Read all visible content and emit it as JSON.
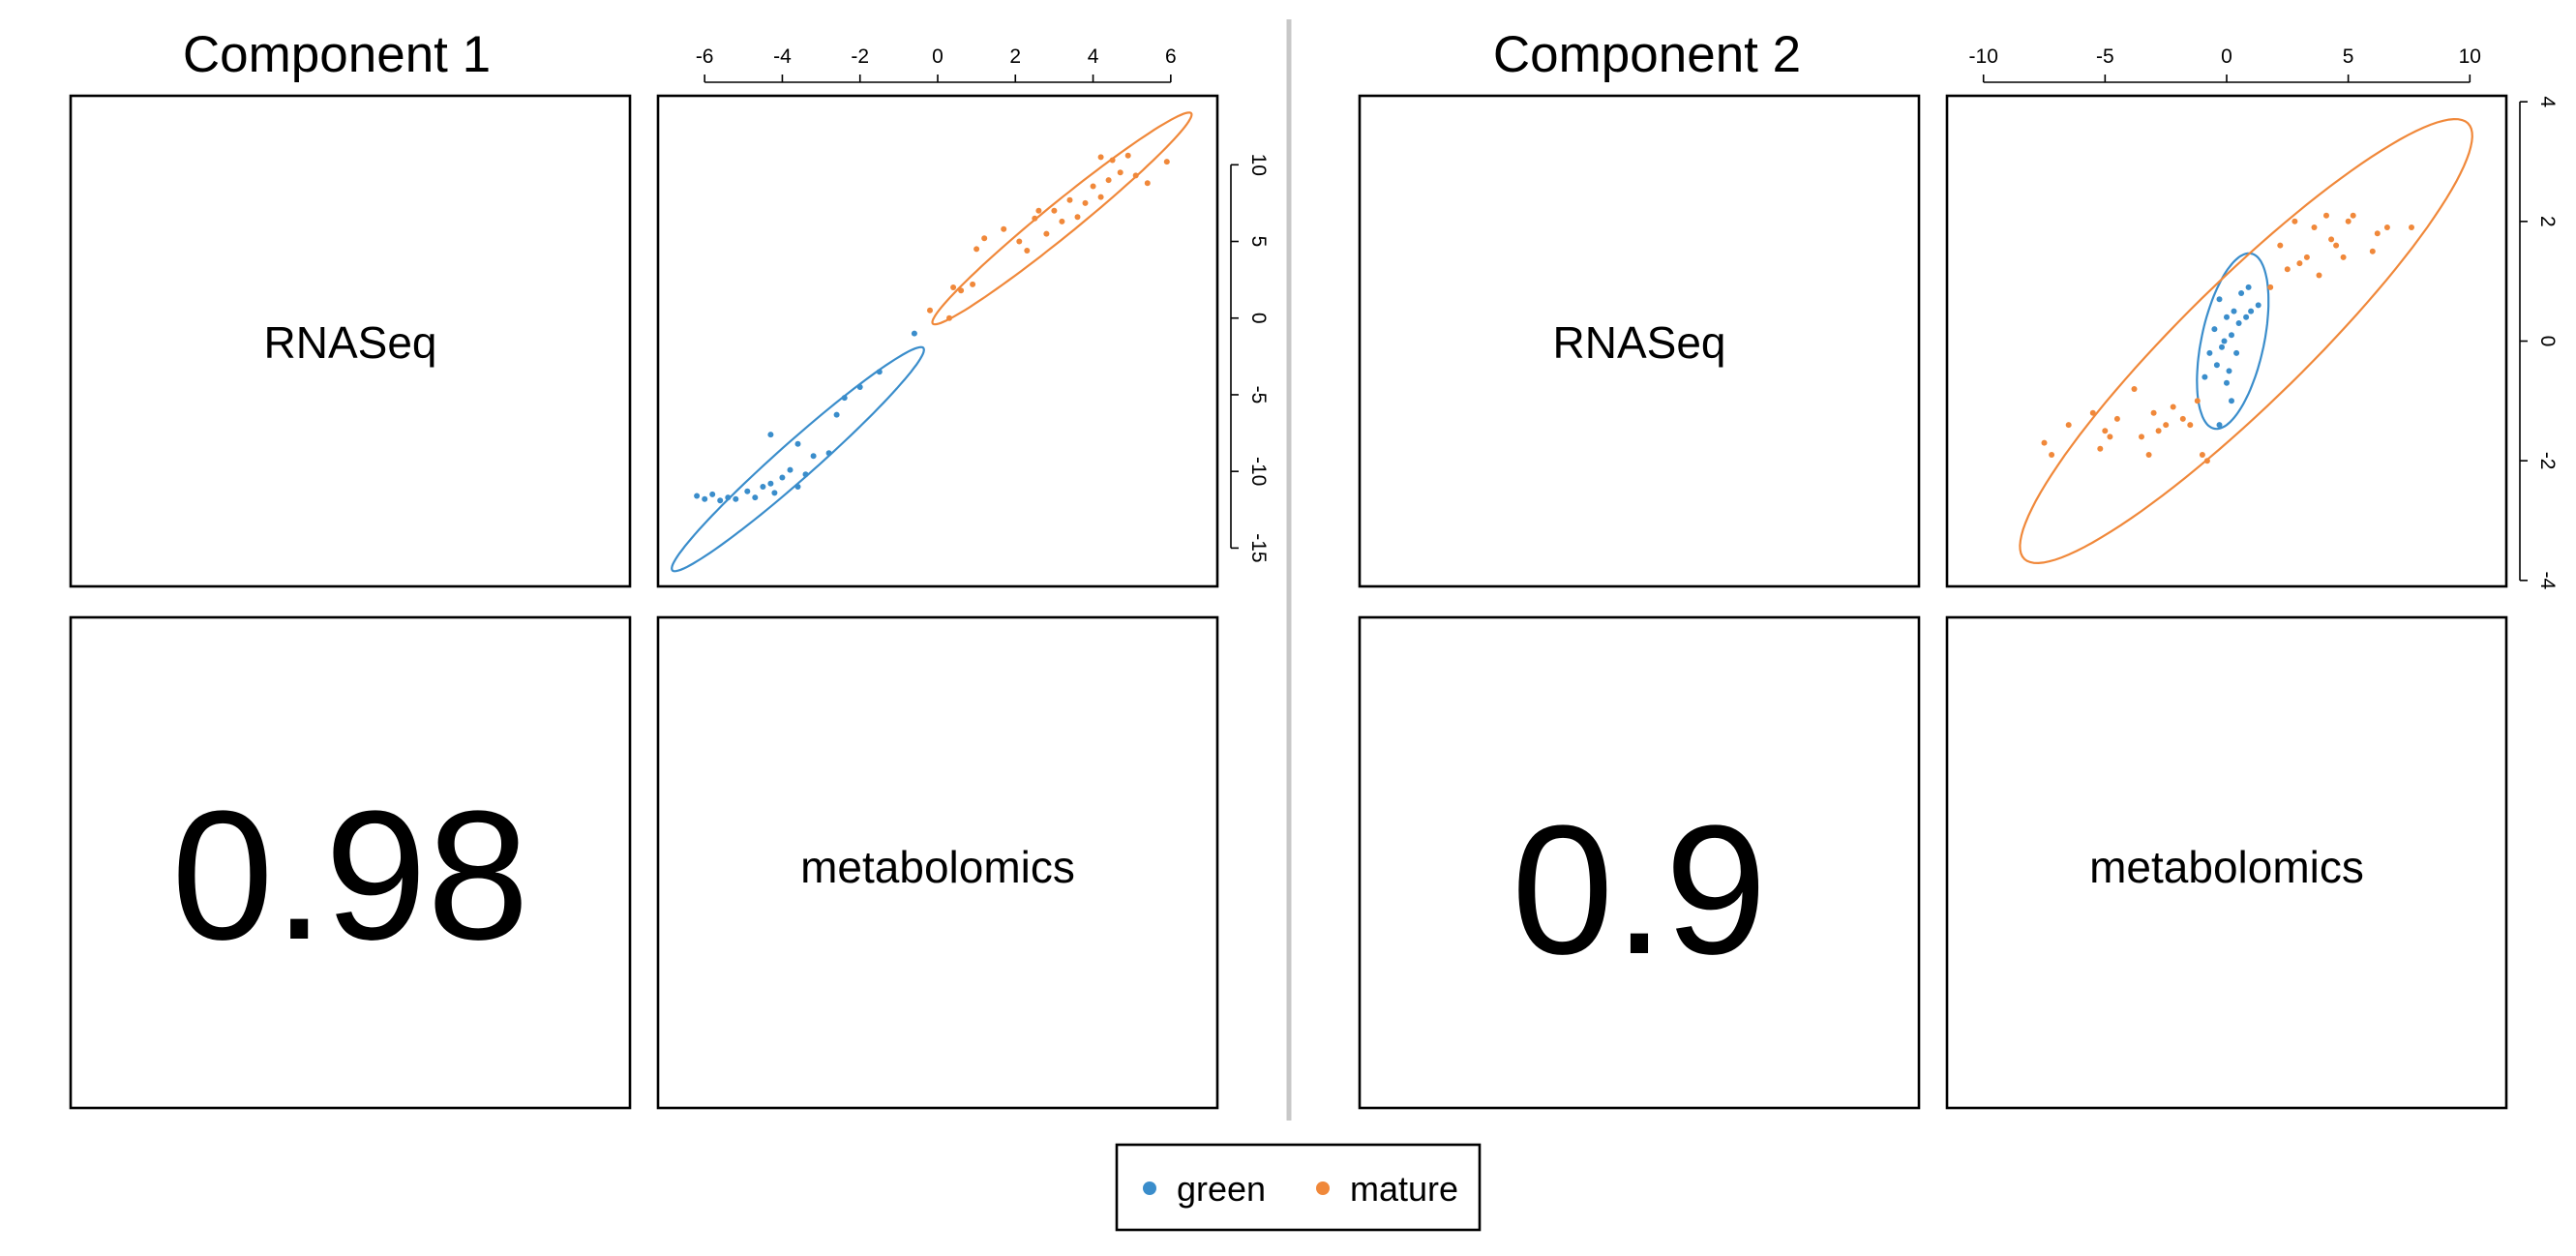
{
  "legend": {
    "items": [
      {
        "label": "green",
        "color": "#3A8DCB"
      },
      {
        "label": "mature",
        "color": "#F0883A"
      }
    ]
  },
  "chart_data": [
    {
      "type": "scatter",
      "title": "Component 1",
      "blocks": [
        "RNASeq",
        "metabolomics"
      ],
      "correlation": "0.98",
      "xlim": [
        -7.2,
        7.2
      ],
      "ylim": [
        -17.5,
        14.5
      ],
      "xticks": [
        -6,
        -4,
        -2,
        0,
        2,
        4,
        6
      ],
      "yticks": [
        -15,
        -10,
        -5,
        0,
        5,
        10
      ],
      "series": [
        {
          "name": "green",
          "color": "#3A8DCB",
          "points": [
            [
              -6.2,
              -11.6
            ],
            [
              -6.0,
              -11.8
            ],
            [
              -5.8,
              -11.5
            ],
            [
              -5.6,
              -11.9
            ],
            [
              -5.4,
              -11.7
            ],
            [
              -5.2,
              -11.8
            ],
            [
              -4.9,
              -11.3
            ],
            [
              -4.7,
              -11.7
            ],
            [
              -4.5,
              -11.0
            ],
            [
              -4.3,
              -10.8
            ],
            [
              -4.2,
              -11.4
            ],
            [
              -4.0,
              -10.4
            ],
            [
              -3.8,
              -9.9
            ],
            [
              -3.6,
              -11.0
            ],
            [
              -3.4,
              -10.2
            ],
            [
              -3.2,
              -9.0
            ],
            [
              -4.3,
              -7.6
            ],
            [
              -3.6,
              -8.2
            ],
            [
              -2.8,
              -8.8
            ],
            [
              -2.6,
              -6.3
            ],
            [
              -2.4,
              -5.2
            ],
            [
              -2.0,
              -4.5
            ],
            [
              -1.5,
              -3.5
            ],
            [
              -0.6,
              -1.0
            ]
          ]
        },
        {
          "name": "mature",
          "color": "#F0883A",
          "points": [
            [
              -0.2,
              0.5
            ],
            [
              0.3,
              0.0
            ],
            [
              0.4,
              2.0
            ],
            [
              0.6,
              1.8
            ],
            [
              0.9,
              2.2
            ],
            [
              1.0,
              4.5
            ],
            [
              1.2,
              5.2
            ],
            [
              1.7,
              5.8
            ],
            [
              2.1,
              5.0
            ],
            [
              2.3,
              4.4
            ],
            [
              2.5,
              6.5
            ],
            [
              2.6,
              7.0
            ],
            [
              2.8,
              5.5
            ],
            [
              3.0,
              7.0
            ],
            [
              3.2,
              6.3
            ],
            [
              3.4,
              7.7
            ],
            [
              3.6,
              6.6
            ],
            [
              3.8,
              7.5
            ],
            [
              4.0,
              8.6
            ],
            [
              4.2,
              7.9
            ],
            [
              4.4,
              9.0
            ],
            [
              4.5,
              10.3
            ],
            [
              4.7,
              9.5
            ],
            [
              4.9,
              10.6
            ],
            [
              5.1,
              9.3
            ],
            [
              5.4,
              8.8
            ],
            [
              5.9,
              10.2
            ],
            [
              4.2,
              10.5
            ]
          ]
        }
      ],
      "ellipses": [
        {
          "series": "green",
          "center": [
            -3.6,
            -9.2
          ],
          "axis1": [
            3.2,
            7.3
          ],
          "axis2": [
            -0.55,
            0.36
          ]
        },
        {
          "series": "mature",
          "center": [
            3.2,
            6.5
          ],
          "axis1": [
            3.3,
            6.9
          ],
          "axis2": [
            -0.5,
            0.34
          ]
        }
      ]
    },
    {
      "type": "scatter",
      "title": "Component 2",
      "blocks": [
        "RNASeq",
        "metabolomics"
      ],
      "correlation": "0.9",
      "xlim": [
        -11.5,
        11.5
      ],
      "ylim": [
        -4.1,
        4.1
      ],
      "xticks": [
        -10,
        -5,
        0,
        5,
        10
      ],
      "yticks": [
        -4,
        -2,
        0,
        2,
        4
      ],
      "series": [
        {
          "name": "green",
          "color": "#3A8DCB",
          "points": [
            [
              -0.9,
              -0.6
            ],
            [
              -0.7,
              -0.2
            ],
            [
              -0.5,
              0.2
            ],
            [
              -0.4,
              -0.4
            ],
            [
              -0.3,
              0.7
            ],
            [
              -0.2,
              -0.1
            ],
            [
              -0.1,
              0.0
            ],
            [
              0.0,
              0.4
            ],
            [
              0.1,
              -0.5
            ],
            [
              0.2,
              0.1
            ],
            [
              0.3,
              0.5
            ],
            [
              0.4,
              -0.2
            ],
            [
              0.5,
              0.3
            ],
            [
              0.6,
              0.8
            ],
            [
              0.8,
              0.4
            ],
            [
              1.0,
              0.5
            ],
            [
              0.9,
              0.9
            ],
            [
              1.3,
              0.6
            ],
            [
              0.2,
              -1.0
            ],
            [
              -0.3,
              -1.4
            ],
            [
              0.0,
              -0.7
            ]
          ]
        },
        {
          "name": "mature",
          "color": "#F0883A",
          "points": [
            [
              -7.5,
              -1.7
            ],
            [
              -7.2,
              -1.9
            ],
            [
              -6.5,
              -1.4
            ],
            [
              -5.5,
              -1.2
            ],
            [
              -5.2,
              -1.8
            ],
            [
              -5.0,
              -1.5
            ],
            [
              -4.8,
              -1.6
            ],
            [
              -4.5,
              -1.3
            ],
            [
              -3.8,
              -0.8
            ],
            [
              -3.5,
              -1.6
            ],
            [
              -3.2,
              -1.9
            ],
            [
              -3.0,
              -1.2
            ],
            [
              -2.8,
              -1.5
            ],
            [
              -2.5,
              -1.4
            ],
            [
              -2.2,
              -1.1
            ],
            [
              -1.8,
              -1.3
            ],
            [
              -1.2,
              -1.0
            ],
            [
              -1.0,
              -1.9
            ],
            [
              -0.8,
              -2.0
            ],
            [
              -1.5,
              -1.4
            ],
            [
              1.8,
              0.9
            ],
            [
              2.2,
              1.6
            ],
            [
              2.5,
              1.2
            ],
            [
              2.8,
              2.0
            ],
            [
              3.0,
              1.3
            ],
            [
              3.3,
              1.4
            ],
            [
              3.6,
              1.9
            ],
            [
              3.8,
              1.1
            ],
            [
              4.1,
              2.1
            ],
            [
              4.3,
              1.7
            ],
            [
              4.5,
              1.6
            ],
            [
              4.8,
              1.4
            ],
            [
              5.0,
              2.0
            ],
            [
              5.2,
              2.1
            ],
            [
              6.2,
              1.8
            ],
            [
              6.6,
              1.9
            ],
            [
              7.6,
              1.9
            ],
            [
              6.0,
              1.5
            ]
          ]
        }
      ],
      "ellipses": [
        {
          "series": "green",
          "center": [
            0.25,
            0.0
          ],
          "axis1": [
            1.2,
            1.3
          ],
          "axis2": [
            -0.85,
            0.68
          ]
        },
        {
          "series": "mature",
          "center": [
            0.8,
            0.0
          ],
          "axis1": [
            9.2,
            3.6
          ],
          "axis2": [
            -1.35,
            0.9
          ]
        }
      ]
    }
  ]
}
